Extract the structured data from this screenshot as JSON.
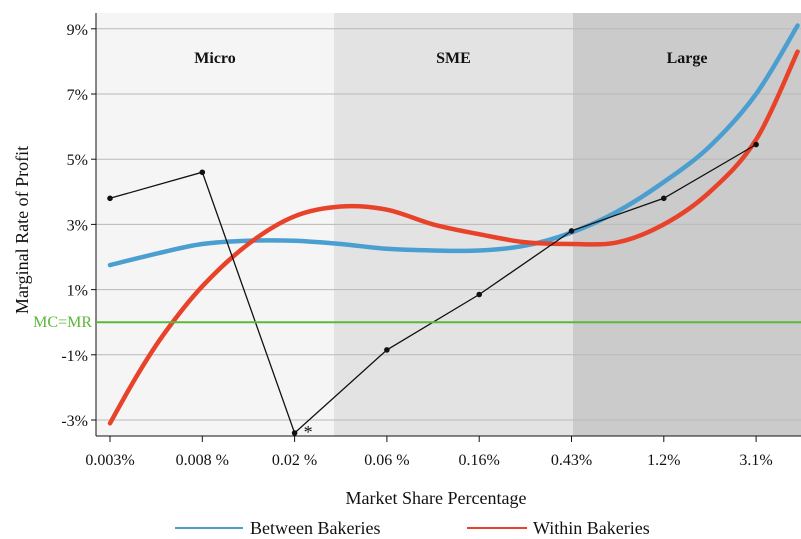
{
  "chart_data": {
    "type": "line",
    "xlabel": "Market Share Percentage",
    "ylabel": "Marginal Rate of Profit",
    "x_tick_labels": [
      "0.003%",
      "0.008 %",
      "0.02 %",
      "0.06 %",
      "0.16%",
      "0.43%",
      "1.2%",
      "3.1%"
    ],
    "y_tick_labels": [
      "9%",
      "7%",
      "5%",
      "3%",
      "1%",
      "-1%",
      "-3%"
    ],
    "y_ticks": [
      9,
      7,
      5,
      3,
      1,
      -1,
      -3
    ],
    "ylim": [
      -3.5,
      9.5
    ],
    "regions": [
      {
        "label": "Micro",
        "color": "#f5f5f5"
      },
      {
        "label": "SME",
        "color": "#e3e3e3"
      },
      {
        "label": "Large",
        "color": "#cbcbcb"
      }
    ],
    "reference_line": {
      "label": "MC=MR",
      "y": 0,
      "color": "#5cb83a"
    },
    "series": [
      {
        "name": "Between Bakeries",
        "color": "#4a9fd0",
        "x": [
          0,
          0.5,
          1,
          1.5,
          2,
          2.5,
          3,
          3.5,
          4,
          4.5,
          5,
          5.5,
          6,
          6.5,
          7,
          7.45
        ],
        "y": [
          1.75,
          2.1,
          2.4,
          2.5,
          2.5,
          2.4,
          2.25,
          2.2,
          2.2,
          2.35,
          2.75,
          3.4,
          4.3,
          5.4,
          7.0,
          9.1
        ]
      },
      {
        "name": "Within Bakeries",
        "color": "#e8432a",
        "x": [
          0,
          0.3,
          0.6,
          1,
          1.5,
          2,
          2.5,
          3,
          3.5,
          4,
          4.5,
          5,
          5.5,
          6,
          6.5,
          7,
          7.45
        ],
        "y": [
          -3.1,
          -1.6,
          -0.3,
          1.1,
          2.4,
          3.25,
          3.55,
          3.45,
          3.0,
          2.7,
          2.45,
          2.4,
          2.45,
          3.0,
          4.0,
          5.6,
          8.3
        ]
      },
      {
        "name": "",
        "color": "#111111",
        "x": [
          0,
          1,
          2,
          3,
          4,
          5,
          6,
          7
        ],
        "y": [
          3.8,
          4.6,
          -3.4,
          -0.85,
          0.85,
          2.8,
          3.8,
          5.45
        ],
        "markers": true
      }
    ],
    "annotations": [
      {
        "text": "*",
        "point_index": 2
      }
    ],
    "legend": {
      "position": "bottom-center",
      "entries": [
        "Between Bakeries",
        "Within Bakeries"
      ]
    },
    "grid": "horizontal"
  }
}
